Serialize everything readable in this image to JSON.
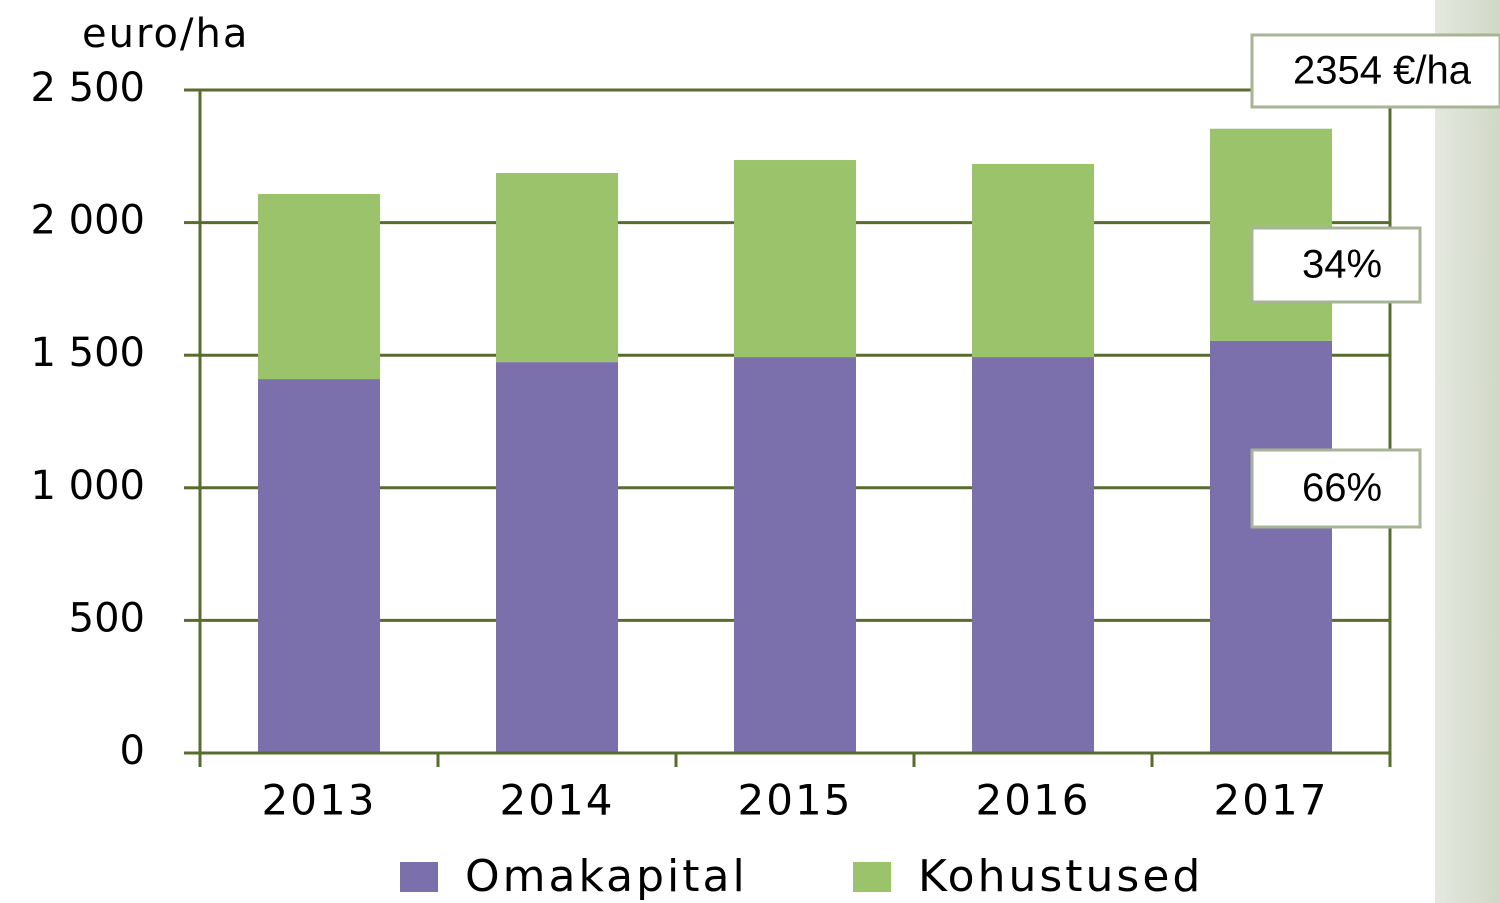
{
  "chart_data": {
    "type": "stacked_bar",
    "y_axis_label": "euro/ha",
    "categories": [
      "2013",
      "2014",
      "2015",
      "2016",
      "2017"
    ],
    "series": [
      {
        "name": "Omakapital",
        "color": "#7b70ab",
        "values": [
          1410,
          1474,
          1493,
          1493,
          1554
        ]
      },
      {
        "name": "Kohustused",
        "color": "#9bc36b",
        "values": [
          698,
          713,
          743,
          728,
          800
        ]
      }
    ],
    "ylim": [
      0,
      2500
    ],
    "yticks": [
      0,
      500,
      {
        "value": 1000,
        "label": "1 000"
      },
      {
        "value": 1500,
        "label": "1 500"
      },
      {
        "value": 2000,
        "label": "2 000"
      },
      {
        "value": 2500,
        "label": "2 500"
      }
    ],
    "grid": true,
    "legend": "bottom",
    "annotations": [
      "2354 €/ha",
      "34%",
      "66%"
    ]
  }
}
